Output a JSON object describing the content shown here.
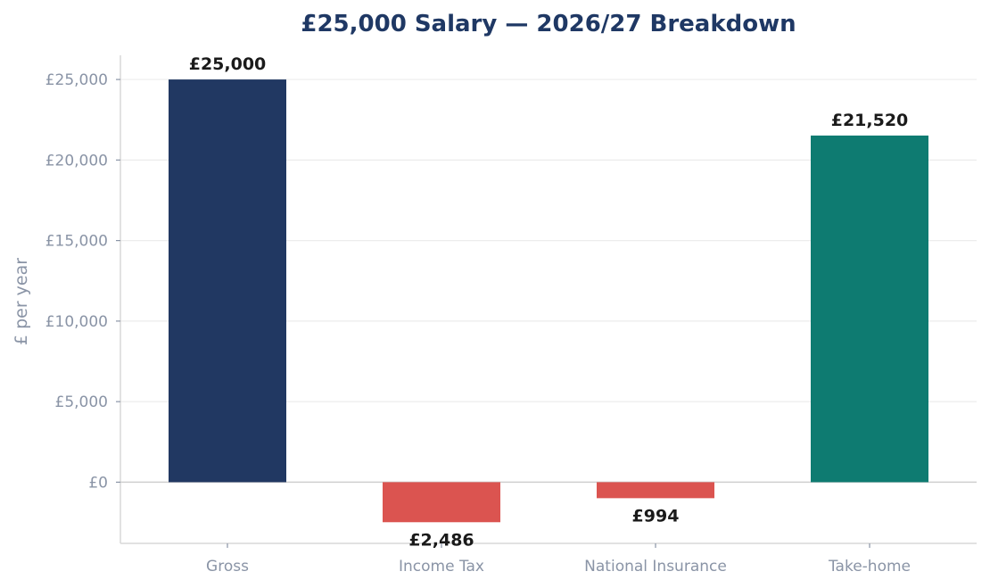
{
  "chart_data": {
    "type": "bar",
    "title": "£25,000 Salary — 2026/27 Breakdown",
    "xlabel": "",
    "ylabel": "£ per year",
    "categories": [
      "Gross",
      "Income Tax",
      "National Insurance",
      "Take-home"
    ],
    "values": [
      25000,
      -2486,
      -994,
      21520
    ],
    "value_labels": [
      "£25,000",
      "£2,486",
      "£994",
      "£21,520"
    ],
    "colors": [
      "#213862",
      "#db5450",
      "#db5450",
      "#0e7b71"
    ],
    "ylim": [
      -3800,
      26500
    ],
    "yticks": [
      0,
      5000,
      10000,
      15000,
      20000,
      25000
    ],
    "ytick_labels": [
      "£0",
      "£5,000",
      "£10,000",
      "£15,000",
      "£20,000",
      "£25,000"
    ],
    "grid": true,
    "legend": "none"
  }
}
